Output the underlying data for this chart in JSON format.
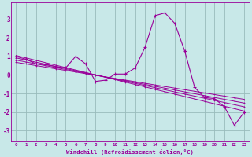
{
  "xlabel": "Windchill (Refroidissement éolien,°C)",
  "background_color": "#c8e8e8",
  "line_color": "#990099",
  "grid_color": "#99bbbb",
  "xlim": [
    -0.5,
    23.5
  ],
  "ylim": [
    -3.6,
    3.9
  ],
  "yticks": [
    -3,
    -2,
    -1,
    0,
    1,
    2,
    3
  ],
  "xticks": [
    0,
    1,
    2,
    3,
    4,
    5,
    6,
    7,
    8,
    9,
    10,
    11,
    12,
    13,
    14,
    15,
    16,
    17,
    18,
    19,
    20,
    21,
    22,
    23
  ],
  "xtick_labels": [
    "0",
    "1",
    "2",
    "3",
    "4",
    "5",
    "6",
    "7",
    "8",
    "9",
    "10",
    "11",
    "12",
    "13",
    "14",
    "15",
    "16",
    "17",
    "18",
    "19",
    "20",
    "21",
    "22",
    "23"
  ],
  "main_series": [
    [
      0,
      1.0
    ],
    [
      1,
      0.85
    ],
    [
      2,
      0.6
    ],
    [
      3,
      0.55
    ],
    [
      4,
      0.45
    ],
    [
      5,
      0.38
    ],
    [
      6,
      1.0
    ],
    [
      7,
      0.6
    ],
    [
      8,
      -0.35
    ],
    [
      9,
      -0.28
    ],
    [
      10,
      0.05
    ],
    [
      11,
      0.05
    ],
    [
      12,
      0.38
    ],
    [
      13,
      1.5
    ],
    [
      14,
      3.2
    ],
    [
      15,
      3.35
    ],
    [
      16,
      2.78
    ],
    [
      17,
      1.28
    ],
    [
      18,
      -0.68
    ],
    [
      19,
      -1.22
    ],
    [
      20,
      -1.28
    ],
    [
      21,
      -1.72
    ],
    [
      22,
      -2.72
    ],
    [
      23,
      -2.0
    ]
  ],
  "trend_lines": [
    [
      [
        0,
        1.05
      ],
      [
        23,
        -1.95
      ]
    ],
    [
      [
        0,
        0.92
      ],
      [
        23,
        -1.72
      ]
    ],
    [
      [
        0,
        0.8
      ],
      [
        23,
        -1.52
      ]
    ],
    [
      [
        0,
        0.68
      ],
      [
        23,
        -1.32
      ]
    ]
  ]
}
